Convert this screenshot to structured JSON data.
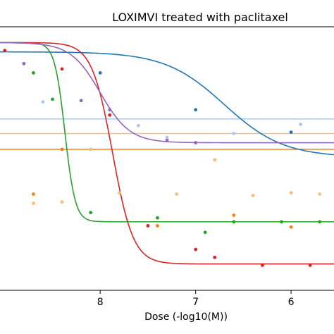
{
  "chart_data": {
    "type": "scatter",
    "title": "LOXIMVI treated with paclitaxel",
    "xlabel": "Dose (-log10(M))",
    "ylabel": "",
    "x_reversed": true,
    "xlim": [
      9.05,
      5.55
    ],
    "ylim": [
      -1.05,
      0.95
    ],
    "xticks": [
      8,
      7,
      6
    ],
    "xtick_labels": [
      "8",
      "7",
      "6"
    ],
    "grid": false,
    "colors": {
      "blue": "#1f77b4",
      "orange": "#ff7f0e",
      "green": "#2ca02c",
      "red": "#d62728",
      "purple": "#9467bd",
      "light_blue": "#aec7e8",
      "light_orange": "#ffbb78"
    },
    "horizontal_lines": [
      {
        "color": "#aec7e8",
        "y": 0.25
      },
      {
        "color": "#ffbb78",
        "y": 0.14
      },
      {
        "color": "#ff7f0e",
        "y": 0.02
      }
    ],
    "series": [
      {
        "color": "#1f77b4",
        "curve": {
          "bottom": -0.04,
          "top": 0.76,
          "ec50": 6.7,
          "hill": 1.4
        },
        "points": [
          [
            8.0,
            0.6
          ],
          [
            7.0,
            0.32
          ],
          [
            6.0,
            0.15
          ]
        ]
      },
      {
        "color": "#2ca02c",
        "curve": {
          "bottom": -0.53,
          "top": 0.83,
          "ec50": 8.37,
          "hill": 8.0
        },
        "points": [
          [
            8.7,
            0.6
          ],
          [
            8.5,
            0.4
          ],
          [
            8.1,
            -0.46
          ],
          [
            7.4,
            -0.5
          ],
          [
            6.9,
            -0.61
          ],
          [
            6.6,
            -0.53
          ],
          [
            6.1,
            -0.53
          ],
          [
            5.7,
            -0.53
          ]
        ]
      },
      {
        "color": "#d62728",
        "curve": {
          "bottom": -0.85,
          "top": 0.83,
          "ec50": 7.87,
          "hill": 4.0
        },
        "points": [
          [
            9.0,
            0.77
          ],
          [
            8.4,
            0.63
          ],
          [
            7.9,
            0.28
          ],
          [
            7.5,
            -0.56
          ],
          [
            7.0,
            -0.74
          ],
          [
            6.8,
            -0.8
          ],
          [
            6.3,
            -0.86
          ],
          [
            5.8,
            -0.86
          ]
        ]
      },
      {
        "color": "#9467bd",
        "curve": {
          "bottom": 0.07,
          "top": 0.83,
          "ec50": 8.0,
          "hill": 2.8
        },
        "points": [
          [
            8.8,
            0.67
          ],
          [
            8.2,
            0.39
          ],
          [
            7.9,
            0.32
          ],
          [
            7.3,
            0.09
          ],
          [
            7.0,
            0.07
          ]
        ]
      },
      {
        "color": "#aec7e8",
        "curve": null,
        "points": [
          [
            8.6,
            0.38
          ],
          [
            7.6,
            0.2
          ],
          [
            7.3,
            0.11
          ],
          [
            6.6,
            0.14
          ],
          [
            5.9,
            0.21
          ]
        ]
      },
      {
        "color": "#ff7f0e",
        "curve": null,
        "points": [
          [
            8.7,
            -0.32
          ],
          [
            8.4,
            0.02
          ],
          [
            7.4,
            -0.56
          ],
          [
            6.6,
            -0.48
          ],
          [
            6.0,
            -0.57
          ]
        ]
      },
      {
        "color": "#ffbb78",
        "curve": null,
        "points": [
          [
            8.7,
            -0.39
          ],
          [
            8.4,
            -0.38
          ],
          [
            8.1,
            0.02
          ],
          [
            7.8,
            -0.31
          ],
          [
            7.2,
            -0.32
          ],
          [
            6.8,
            -0.06
          ],
          [
            6.4,
            -0.33
          ],
          [
            6.0,
            -0.31
          ],
          [
            5.7,
            -0.32
          ]
        ]
      }
    ]
  }
}
